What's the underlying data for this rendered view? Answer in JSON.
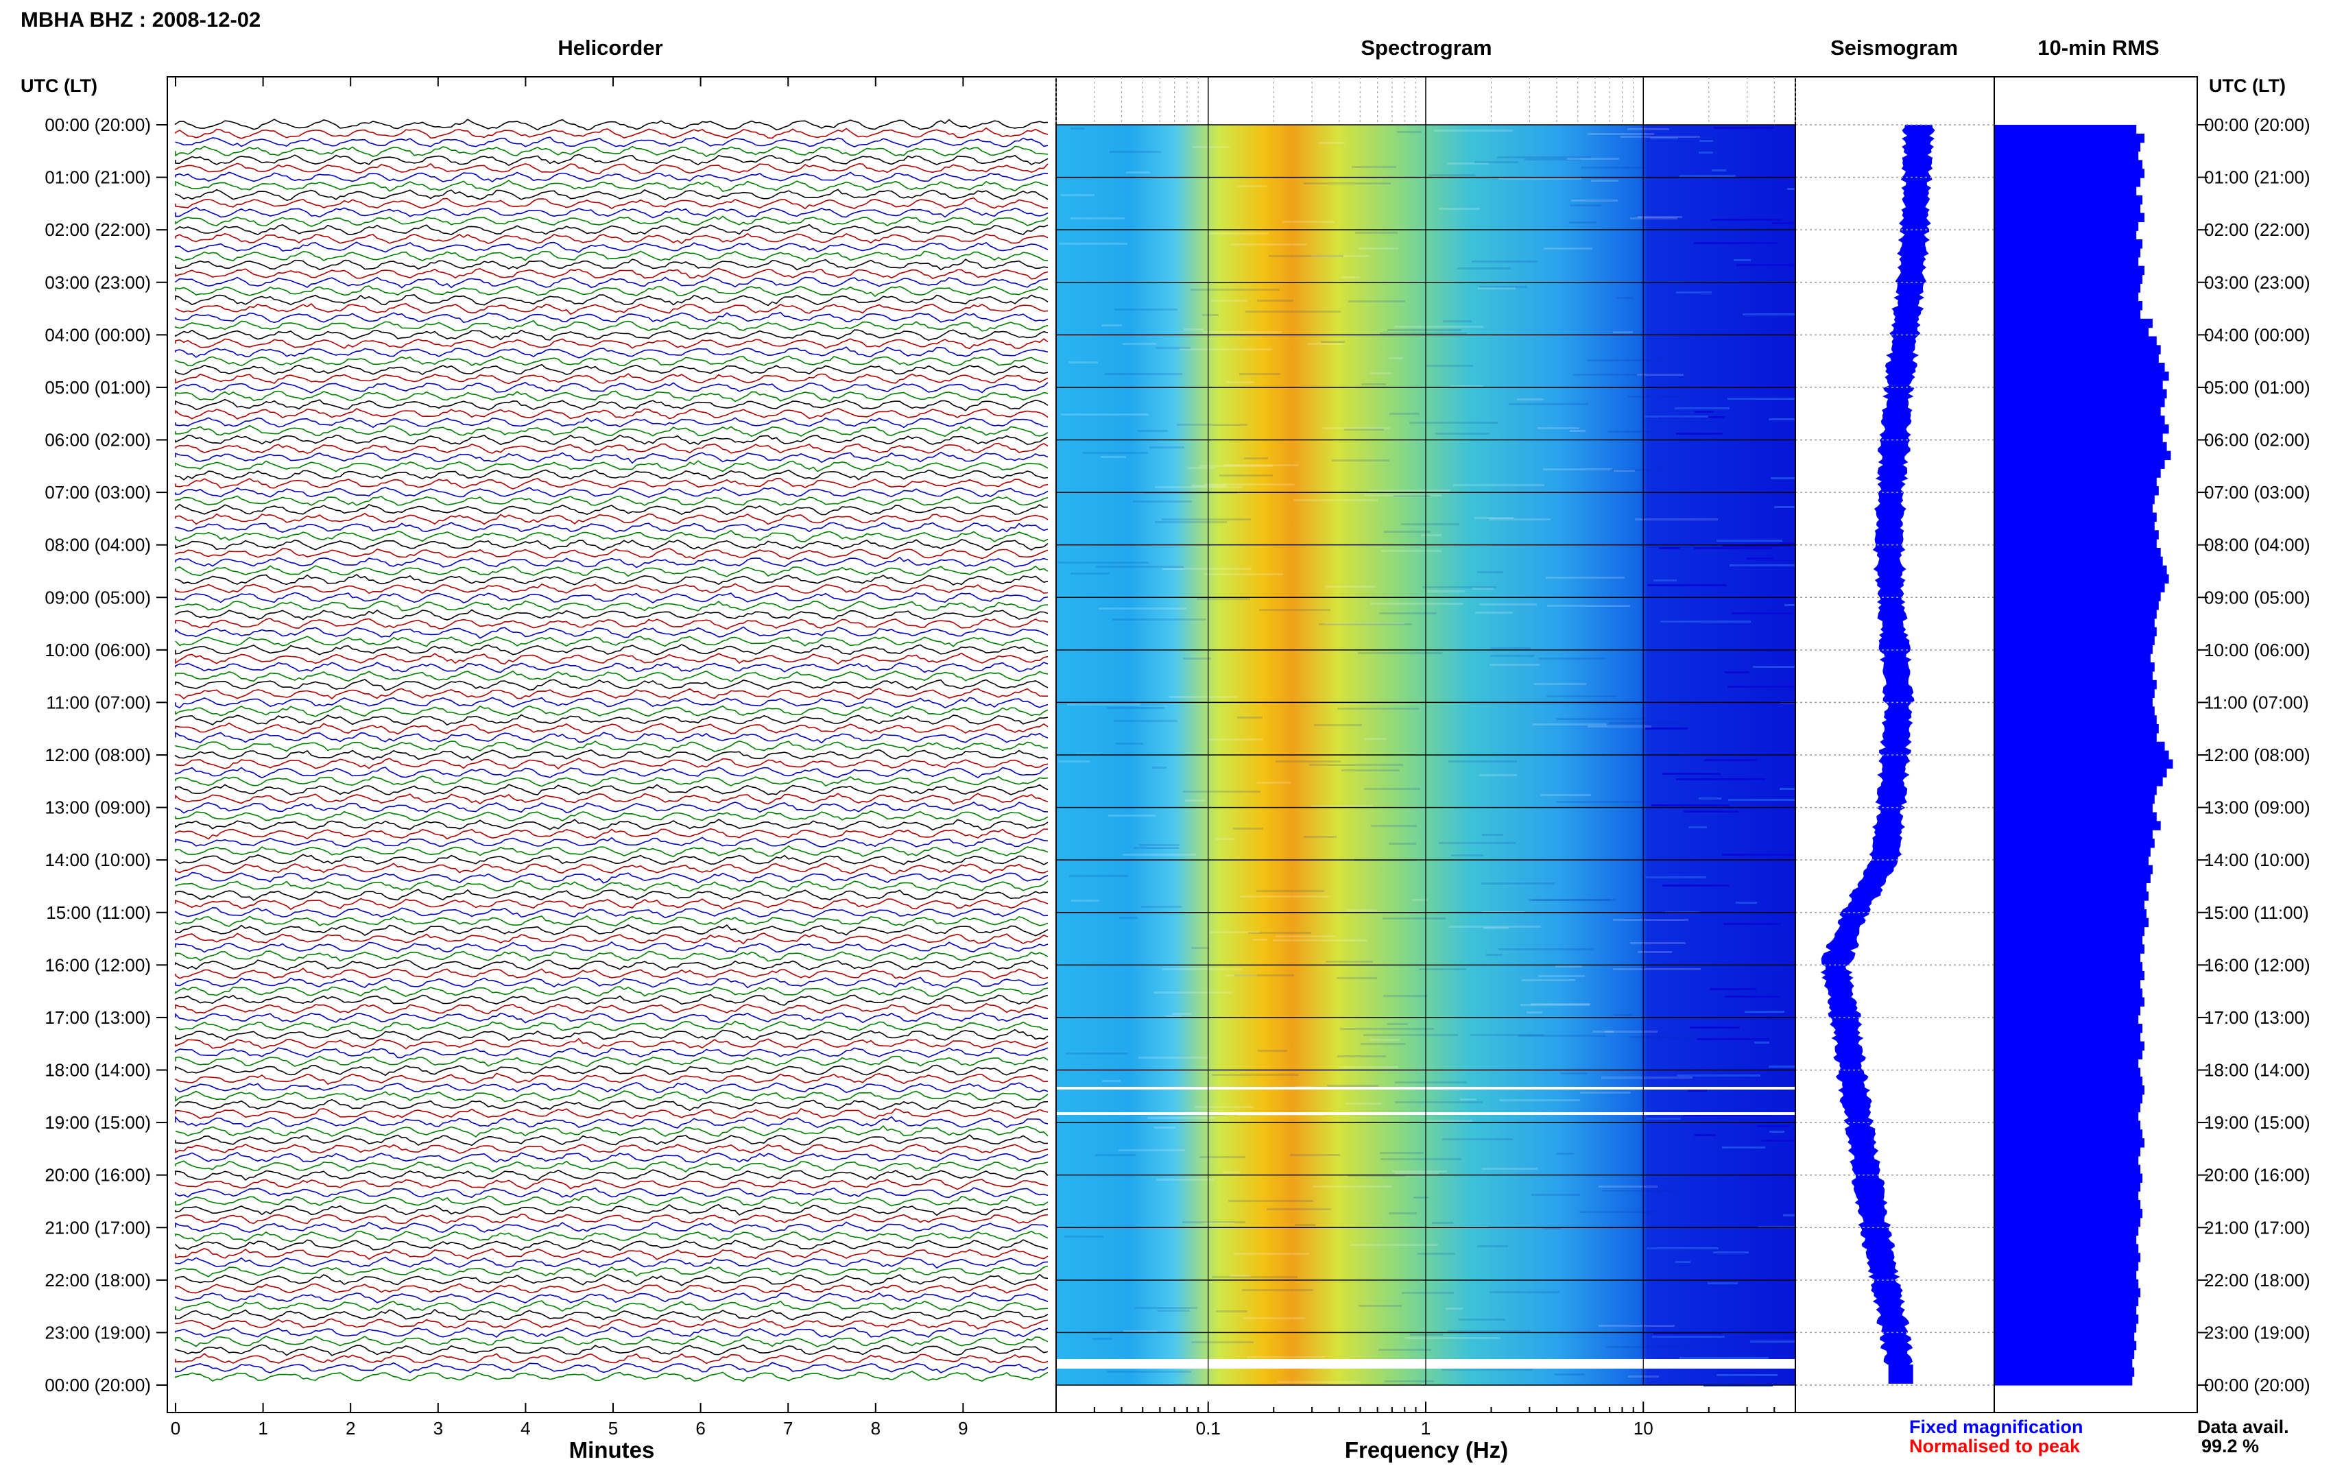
{
  "header": {
    "title": "MBHA BHZ : 2008-12-02",
    "utc_label_left": "UTC (LT)",
    "utc_label_right": "UTC (LT)"
  },
  "panels": {
    "helicorder": "Helicorder",
    "spectrogram": "Spectrogram",
    "seismogram": "Seismogram",
    "rms": "10-min RMS"
  },
  "axes": {
    "minutes_label": "Minutes",
    "frequency_label": "Frequency (Hz)",
    "minute_ticks": [
      "0",
      "1",
      "2",
      "3",
      "4",
      "5",
      "6",
      "7",
      "8",
      "9"
    ],
    "freq_ticks": [
      "0.1",
      "1",
      "10"
    ]
  },
  "legend": {
    "fixed": "Fixed magnification",
    "normalised": "Normalised to peak",
    "fixed_color": "#0000ff",
    "normalised_color": "#ff0000"
  },
  "availability": {
    "label": "Data avail.",
    "value": "99.2 %"
  },
  "colors": {
    "trace_cycle": [
      "#000000",
      "#b00000",
      "#0000c0",
      "#008000"
    ],
    "rms_bar": "#0000ff",
    "seismogram": "#0000ff"
  },
  "chart_data": {
    "type": "heatmap",
    "hour_labels": [
      "00:00 (20:00)",
      "01:00 (21:00)",
      "02:00 (22:00)",
      "03:00 (23:00)",
      "04:00 (00:00)",
      "05:00 (01:00)",
      "06:00 (02:00)",
      "07:00 (03:00)",
      "08:00 (04:00)",
      "09:00 (05:00)",
      "10:00 (06:00)",
      "11:00 (07:00)",
      "12:00 (08:00)",
      "13:00 (09:00)",
      "14:00 (10:00)",
      "15:00 (11:00)",
      "16:00 (12:00)",
      "17:00 (13:00)",
      "18:00 (14:00)",
      "19:00 (15:00)",
      "20:00 (16:00)",
      "21:00 (17:00)",
      "22:00 (18:00)",
      "23:00 (19:00)",
      "00:00 (20:00)"
    ],
    "helicorder_x_range_minutes": [
      0,
      10
    ],
    "spectrogram_freq_range_hz": [
      0.02,
      50
    ],
    "spectrogram_freq_scale": "log",
    "spectrogram_peak_hz": 0.2,
    "rms_10min": [
      0.7,
      0.74,
      0.72,
      0.71,
      0.73,
      0.74,
      0.72,
      0.7,
      0.73,
      0.72,
      0.74,
      0.71,
      0.7,
      0.73,
      0.72,
      0.71,
      0.74,
      0.73,
      0.72,
      0.71,
      0.73,
      0.72,
      0.78,
      0.76,
      0.8,
      0.82,
      0.81,
      0.84,
      0.86,
      0.83,
      0.85,
      0.84,
      0.82,
      0.84,
      0.86,
      0.83,
      0.85,
      0.87,
      0.84,
      0.82,
      0.8,
      0.81,
      0.79,
      0.78,
      0.8,
      0.79,
      0.81,
      0.8,
      0.82,
      0.83,
      0.85,
      0.86,
      0.84,
      0.82,
      0.81,
      0.8,
      0.79,
      0.8,
      0.79,
      0.78,
      0.77,
      0.79,
      0.78,
      0.8,
      0.79,
      0.78,
      0.79,
      0.8,
      0.81,
      0.8,
      0.84,
      0.86,
      0.88,
      0.85,
      0.83,
      0.8,
      0.79,
      0.78,
      0.8,
      0.82,
      0.78,
      0.79,
      0.77,
      0.76,
      0.78,
      0.77,
      0.75,
      0.76,
      0.74,
      0.75,
      0.76,
      0.74,
      0.73,
      0.74,
      0.72,
      0.73,
      0.74,
      0.72,
      0.73,
      0.74,
      0.72,
      0.71,
      0.73,
      0.72,
      0.74,
      0.73,
      0.71,
      0.72,
      0.73,
      0.74,
      0.73,
      0.72,
      0.71,
      0.72,
      0.73,
      0.74,
      0.72,
      0.71,
      0.72,
      0.73,
      0.72,
      0.71,
      0.72,
      0.73,
      0.72,
      0.71,
      0.7,
      0.71,
      0.72,
      0.71,
      0.7,
      0.71,
      0.72,
      0.71,
      0.7,
      0.71,
      0.7,
      0.69,
      0.7,
      0.69,
      0.68,
      0.69,
      0.68
    ],
    "seismogram_offset": [
      0.62,
      0.61,
      0.6,
      0.58,
      0.55,
      0.52,
      0.5,
      0.48,
      0.47,
      0.48,
      0.5,
      0.52,
      0.5,
      0.48,
      0.45,
      0.3,
      0.2,
      0.25,
      0.28,
      0.32,
      0.36,
      0.4,
      0.45,
      0.5,
      0.53
    ]
  }
}
